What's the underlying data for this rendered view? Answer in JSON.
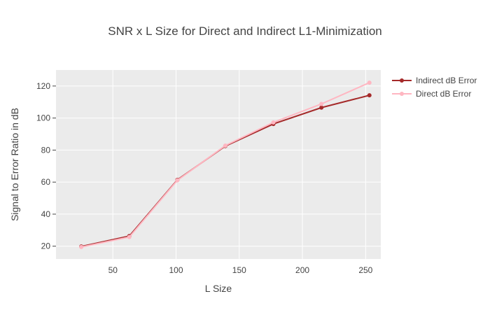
{
  "chart_data": {
    "type": "line",
    "title": "SNR x L Size for Direct and Indirect L1-Minimization",
    "xlabel": "L Size",
    "ylabel": "Signal to Error Ratio in dB",
    "xlim": [
      5,
      262
    ],
    "ylim": [
      12,
      130
    ],
    "xticks": [
      50,
      100,
      150,
      200,
      250
    ],
    "yticks": [
      20,
      40,
      60,
      80,
      100,
      120
    ],
    "grid": true,
    "legend_position": "top-right",
    "plot_background": "#ebebeb",
    "series": [
      {
        "name": "Indirect dB Error",
        "color": "#a52a2a",
        "x": [
          25,
          63,
          101,
          139,
          177,
          215,
          253
        ],
        "y": [
          19.8,
          26.3,
          61.4,
          82.5,
          96.3,
          106.5,
          114.2
        ]
      },
      {
        "name": "Direct dB Error",
        "color": "#ffb6c1",
        "x": [
          25,
          63,
          101,
          139,
          177,
          215,
          253
        ],
        "y": [
          19.5,
          25.7,
          61.1,
          82.8,
          97.3,
          108.8,
          122.1
        ]
      }
    ]
  }
}
